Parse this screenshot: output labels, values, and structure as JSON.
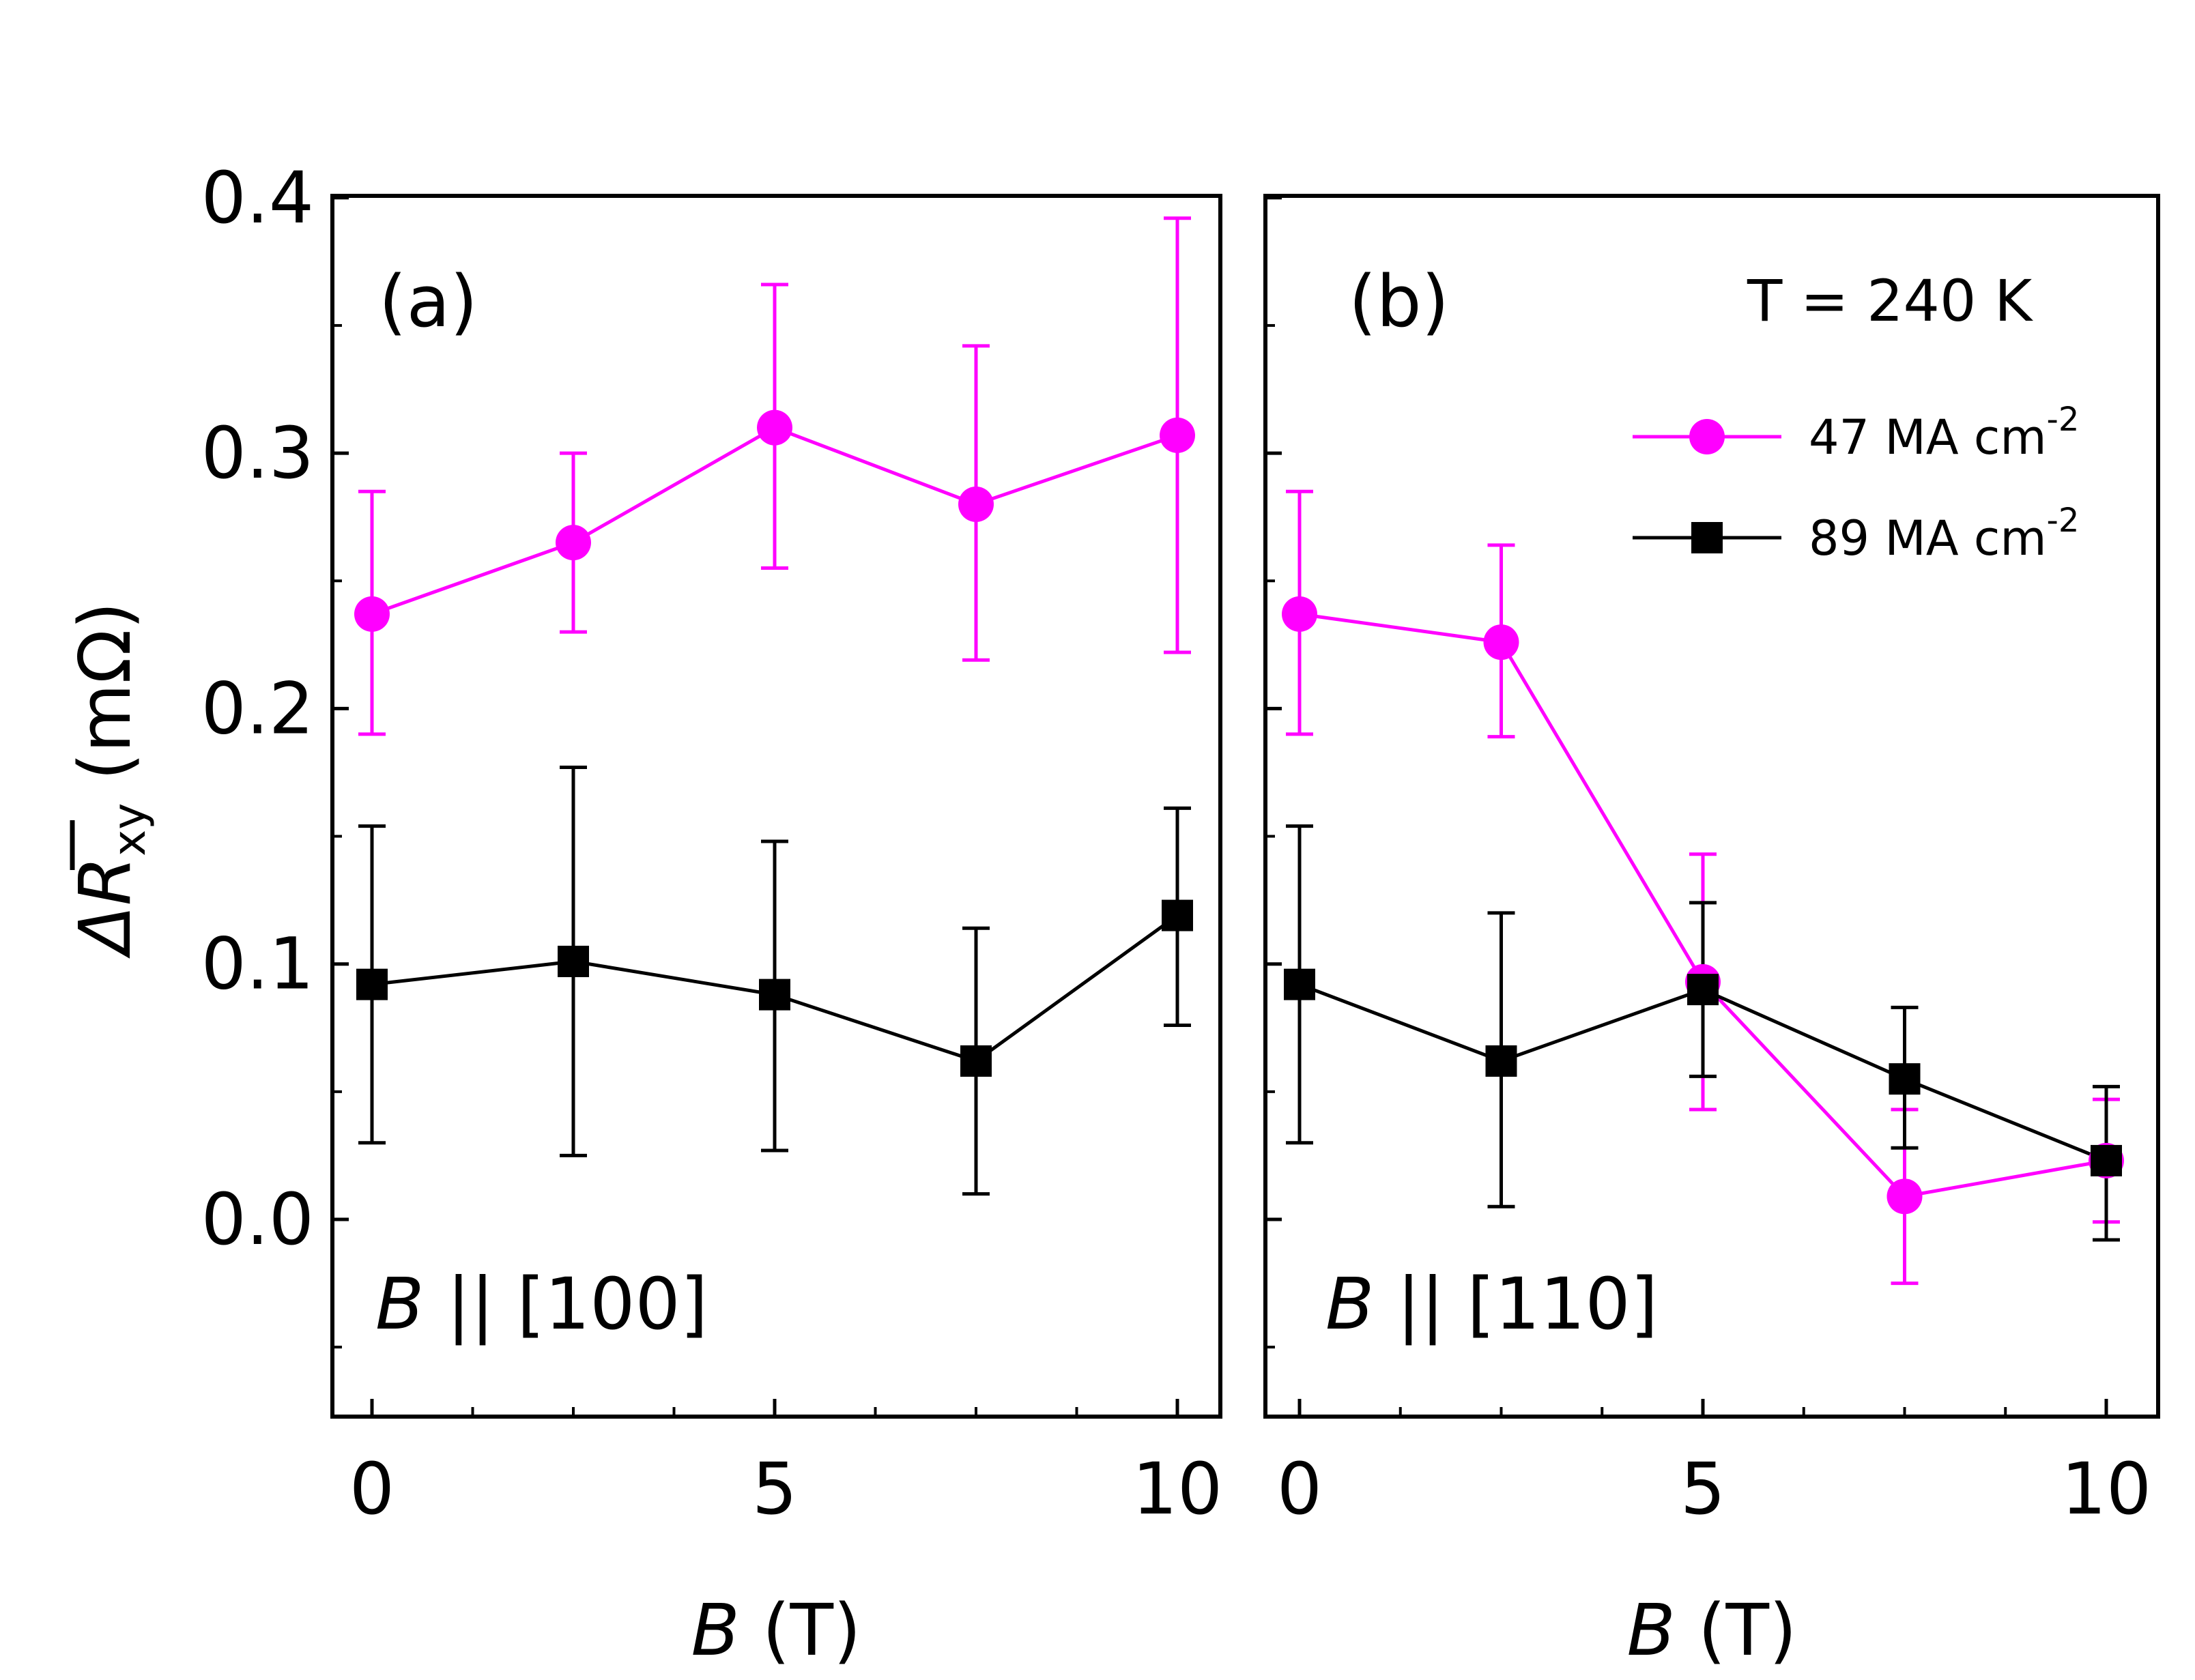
{
  "figure": {
    "y_axis_title": {
      "main": "ΔR",
      "subscript": "xy",
      "unit": "(mΩ)"
    },
    "temperature_label": "T = 240 K"
  },
  "legend": [
    {
      "label": "47 MA cm",
      "superscript": "-2",
      "color": "#ff00ff",
      "marker": "circle"
    },
    {
      "label": "89 MA cm",
      "superscript": "-2",
      "color": "#000000",
      "marker": "square"
    }
  ],
  "chart_data": [
    {
      "type": "line",
      "panel_label": "(a)",
      "orientation_label": {
        "var": "B",
        "text": " || [100]"
      },
      "xlabel": {
        "var": "B",
        "unit": " (T)"
      },
      "ylabel": "ΔR_xy (mΩ)",
      "xlim": [
        -0.5,
        10.5
      ],
      "ylim": [
        -0.075,
        0.4
      ],
      "xticks": [
        0,
        5,
        10
      ],
      "xtick_labels": [
        "0",
        "5",
        "10"
      ],
      "yticks": [
        0.0,
        0.1,
        0.2,
        0.3,
        0.4
      ],
      "ytick_labels": [
        "0.0",
        "0.1",
        "0.2",
        "0.3",
        "0.4"
      ],
      "series": [
        {
          "name": "47 MA cm-2",
          "color": "#ff00ff",
          "marker": "circle",
          "x": [
            0,
            2.5,
            5,
            7.5,
            10
          ],
          "y": [
            0.237,
            0.265,
            0.31,
            0.28,
            0.307
          ],
          "err_low": [
            0.19,
            0.23,
            0.255,
            0.219,
            0.222
          ],
          "err_high": [
            0.285,
            0.3,
            0.366,
            0.342,
            0.392
          ]
        },
        {
          "name": "89 MA cm-2",
          "color": "#000000",
          "marker": "square",
          "x": [
            0,
            2.5,
            5,
            7.5,
            10
          ],
          "y": [
            0.092,
            0.101,
            0.088,
            0.062,
            0.119
          ],
          "err_low": [
            0.03,
            0.025,
            0.027,
            0.01,
            0.076
          ],
          "err_high": [
            0.154,
            0.177,
            0.148,
            0.114,
            0.161
          ]
        }
      ]
    },
    {
      "type": "line",
      "panel_label": "(b)",
      "orientation_label": {
        "var": "B",
        "text": " || [110]"
      },
      "xlabel": {
        "var": "B",
        "unit": " (T)"
      },
      "ylabel": "ΔR_xy (mΩ)",
      "xlim": [
        -0.5,
        10.5
      ],
      "ylim": [
        -0.075,
        0.4
      ],
      "xticks": [
        0,
        5,
        10
      ],
      "xtick_labels": [
        "0",
        "5",
        "10"
      ],
      "yticks": [
        0.0,
        0.1,
        0.2,
        0.3,
        0.4
      ],
      "ytick_labels": [
        "",
        "",
        "",
        "",
        ""
      ],
      "series": [
        {
          "name": "47 MA cm-2",
          "color": "#ff00ff",
          "marker": "circle",
          "x": [
            0,
            2.5,
            5,
            7.5,
            10
          ],
          "y": [
            0.237,
            0.226,
            0.093,
            0.009,
            0.023
          ],
          "err_low": [
            0.19,
            0.189,
            0.043,
            -0.025,
            -0.001
          ],
          "err_high": [
            0.285,
            0.264,
            0.143,
            0.043,
            0.047
          ]
        },
        {
          "name": "89 MA cm-2",
          "color": "#000000",
          "marker": "square",
          "x": [
            0,
            2.5,
            5,
            7.5,
            10
          ],
          "y": [
            0.092,
            0.062,
            0.09,
            0.055,
            0.023
          ],
          "err_low": [
            0.03,
            0.005,
            0.056,
            0.028,
            -0.008
          ],
          "err_high": [
            0.154,
            0.12,
            0.124,
            0.083,
            0.052
          ]
        }
      ]
    }
  ]
}
